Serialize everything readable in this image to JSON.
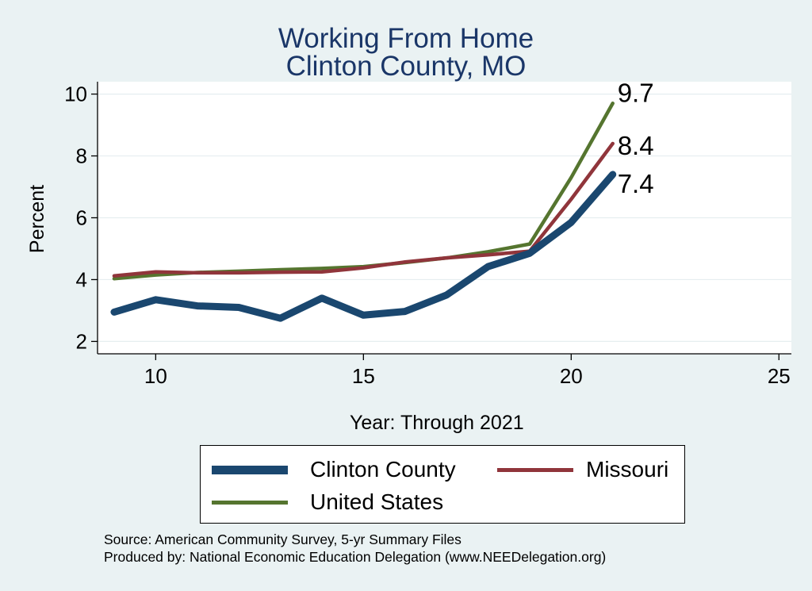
{
  "title": [
    "Working From Home",
    "Clinton County, MO"
  ],
  "source_lines": [
    "Source: American Community Survey, 5-yr Summary Files",
    "Produced by: National Economic Education Delegation (www.NEEDelegation.org)"
  ],
  "chart_data": {
    "type": "line",
    "title": "Working From Home Clinton County, MO",
    "xlabel": "Year: Through 2021",
    "ylabel": "Percent",
    "xlim": [
      8.6,
      25.3
    ],
    "ylim": [
      1.6,
      10.4
    ],
    "xticks": [
      10,
      15,
      20,
      25
    ],
    "yticks": [
      2,
      4,
      6,
      8,
      10
    ],
    "grid": true,
    "legend_position": "bottom",
    "x": [
      9,
      10,
      11,
      12,
      13,
      14,
      15,
      16,
      17,
      18,
      19,
      20,
      21
    ],
    "series": [
      {
        "name": "Clinton County",
        "color": "#1a476f",
        "values": [
          2.95,
          3.35,
          3.15,
          3.1,
          2.75,
          3.4,
          2.85,
          2.97,
          3.5,
          4.42,
          4.85,
          5.85,
          7.4
        ],
        "end_label": "7.4"
      },
      {
        "name": "Missouri",
        "color": "#90353b",
        "values": [
          4.12,
          4.25,
          4.22,
          4.22,
          4.24,
          4.25,
          4.38,
          4.57,
          4.7,
          4.8,
          4.92,
          6.6,
          8.4
        ],
        "end_label": "8.4"
      },
      {
        "name": "United States",
        "color": "#55752f",
        "values": [
          4.03,
          4.15,
          4.23,
          4.27,
          4.32,
          4.36,
          4.42,
          4.55,
          4.7,
          4.9,
          5.15,
          7.3,
          9.7
        ],
        "end_label": "9.7"
      }
    ]
  }
}
